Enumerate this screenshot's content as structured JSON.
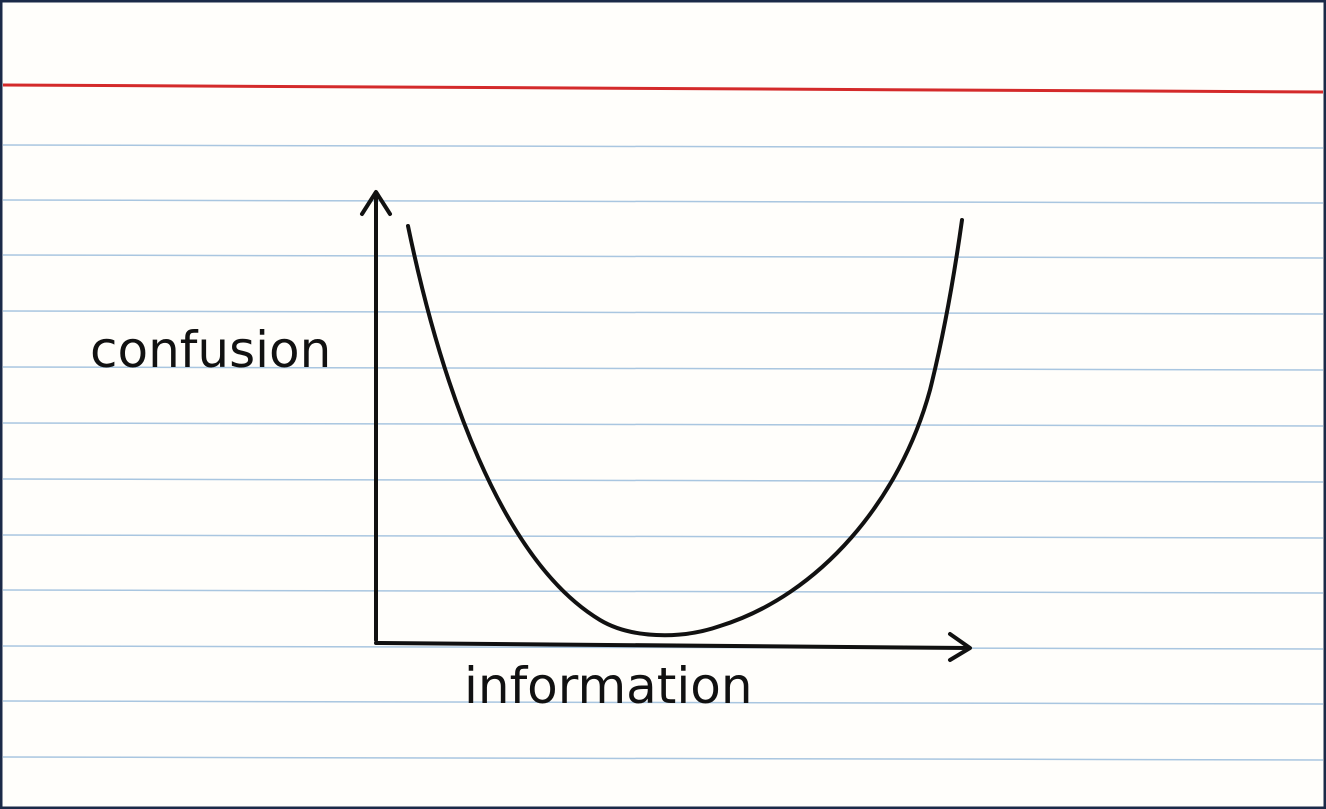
{
  "y_axis_label": "confusion",
  "x_axis_label": "information"
}
